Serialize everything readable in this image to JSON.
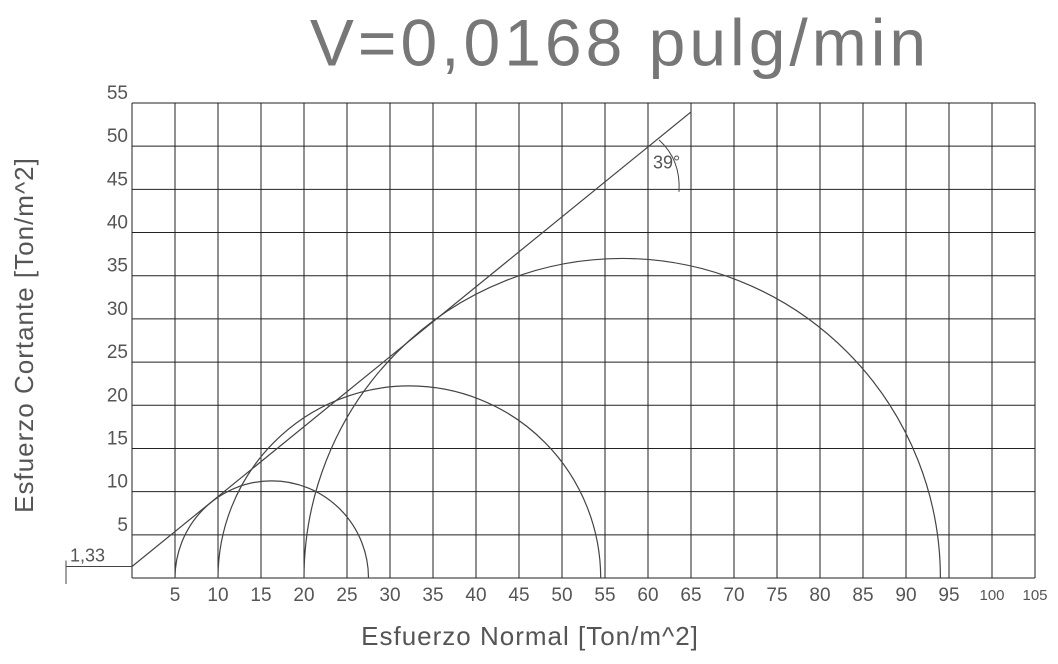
{
  "chart_data": {
    "type": "mohr",
    "title": "V=0,0168 pulg/min",
    "x_label": "Esfuerzo Normal [Ton/m^2]",
    "y_label": "Esfuerzo Cortante [Ton/m^2]",
    "xlim": [
      0,
      105
    ],
    "ylim": [
      0,
      55
    ],
    "xticks": [
      5,
      10,
      15,
      20,
      25,
      30,
      35,
      40,
      45,
      50,
      55,
      60,
      65,
      70,
      75,
      80,
      85,
      90,
      95,
      100,
      105
    ],
    "yticks": [
      5,
      10,
      15,
      20,
      25,
      30,
      35,
      40,
      45,
      50,
      55
    ],
    "grid": true,
    "circles": [
      {
        "sigma3": 5,
        "sigma1": 27.5
      },
      {
        "sigma3": 10,
        "sigma1": 54.5
      },
      {
        "sigma3": 20,
        "sigma1": 94
      }
    ],
    "envelope": {
      "cohesion": 1.33,
      "cohesion_label": "1,33",
      "friction_angle": 39,
      "friction_angle_label": "39°",
      "end_x": 65
    }
  }
}
